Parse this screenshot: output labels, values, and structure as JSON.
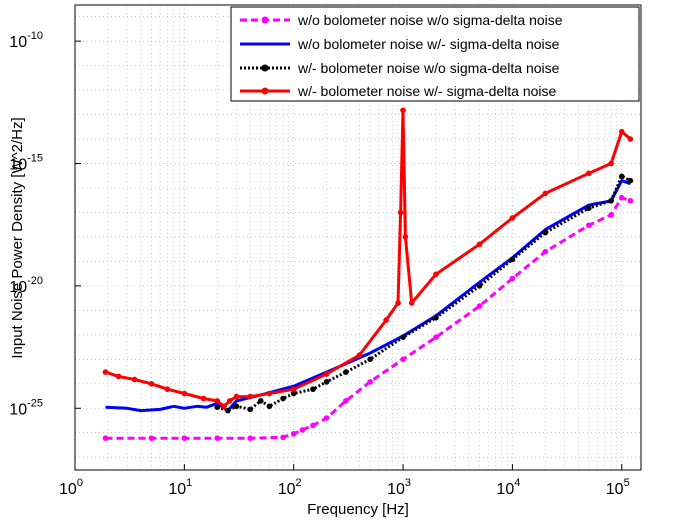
{
  "chart_data": {
    "type": "line",
    "title": "",
    "xlabel": "Frequency [Hz]",
    "ylabel": "Input Noise Power Density [W^2/Hz]",
    "x_scale": "log",
    "y_scale": "log",
    "xlim": [
      1,
      150000
    ],
    "ylim": [
      3e-28,
      3e-09
    ],
    "grid": true,
    "legend_position": "top-right",
    "x_ticks": [
      {
        "base": "10",
        "exp": "0",
        "value": 1
      },
      {
        "base": "10",
        "exp": "1",
        "value": 10
      },
      {
        "base": "10",
        "exp": "2",
        "value": 100
      },
      {
        "base": "10",
        "exp": "3",
        "value": 1000
      },
      {
        "base": "10",
        "exp": "4",
        "value": 10000
      },
      {
        "base": "10",
        "exp": "5",
        "value": 100000
      }
    ],
    "y_ticks": [
      {
        "base": "10",
        "exp": "-25",
        "value": 1e-25
      },
      {
        "base": "10",
        "exp": "-20",
        "value": 1e-20
      },
      {
        "base": "10",
        "exp": "-15",
        "value": 1e-15
      },
      {
        "base": "10",
        "exp": "-10",
        "value": 1e-10
      }
    ],
    "series": [
      {
        "name": "w/o bolometer noise w/o sigma-delta noise",
        "color": "#ff00ff",
        "style": "dashed-marker",
        "x": [
          1.9,
          5,
          10,
          20,
          40,
          80,
          100,
          120,
          150,
          200,
          300,
          500,
          1000,
          2000,
          5000,
          10000,
          20000,
          50000,
          80000,
          100000,
          120000
        ],
        "y": [
          6e-27,
          6e-27,
          6e-27,
          6e-27,
          6e-27,
          6.5e-27,
          9e-27,
          1.3e-26,
          2e-26,
          4e-26,
          2e-25,
          1.2e-24,
          1e-23,
          8e-23,
          1.5e-21,
          2e-20,
          2.5e-19,
          3e-18,
          8e-18,
          4e-17,
          3e-17
        ]
      },
      {
        "name": "w/o bolometer noise w/- sigma-delta noise",
        "color": "#0000ff",
        "style": "solid",
        "x": [
          1.9,
          3,
          4,
          6,
          8,
          10,
          13,
          16,
          20,
          25,
          30,
          50,
          100,
          200,
          500,
          1000,
          2000,
          5000,
          10000,
          20000,
          50000,
          80000,
          100000,
          120000
        ],
        "y": [
          1.1e-25,
          1e-25,
          8e-26,
          9e-26,
          1.2e-25,
          1e-25,
          1.2e-25,
          1.1e-25,
          1.6e-25,
          8e-26,
          2e-25,
          3.5e-25,
          8e-25,
          3e-24,
          1.8e-23,
          9e-23,
          6e-22,
          1.4e-20,
          1.4e-19,
          2e-18,
          2e-17,
          3e-17,
          2e-16,
          1.5e-16
        ]
      },
      {
        "name": "w/- bolometer noise w/o sigma-delta noise",
        "color": "#000000",
        "style": "dotted-marker",
        "x": [
          20,
          25,
          30,
          40,
          50,
          60,
          80,
          100,
          150,
          200,
          300,
          500,
          1000,
          2000,
          5000,
          10000,
          20000,
          50000,
          80000,
          100000,
          120000
        ],
        "y": [
          1.1e-25,
          8e-26,
          1.2e-25,
          9e-26,
          2e-25,
          1.2e-25,
          2.5e-25,
          4e-25,
          6e-25,
          1.2e-24,
          3e-24,
          1e-23,
          8e-23,
          5e-22,
          1e-20,
          1.2e-19,
          1.5e-18,
          1.5e-17,
          3e-17,
          3e-16,
          2e-16
        ]
      },
      {
        "name": "w/- bolometer noise w/- sigma-delta noise",
        "color": "#ff0000",
        "style": "solid-marker",
        "x": [
          1.9,
          2.5,
          3.5,
          5,
          7,
          10,
          15,
          20,
          23,
          26,
          30,
          40,
          60,
          100,
          200,
          400,
          700,
          900,
          950,
          1000,
          1050,
          1200,
          2000,
          5000,
          10000,
          20000,
          50000,
          80000,
          100000,
          120000
        ],
        "y": [
          3e-24,
          2e-24,
          1.5e-24,
          1e-24,
          6e-25,
          4e-25,
          2.5e-25,
          2e-25,
          1.2e-25,
          2e-25,
          3e-25,
          3e-25,
          4e-25,
          6e-25,
          2.5e-24,
          1.5e-23,
          4e-22,
          2e-21,
          1e-17,
          1.5e-13,
          1e-18,
          2e-21,
          3e-20,
          5e-19,
          6e-18,
          6e-17,
          4e-16,
          1e-15,
          2e-14,
          1e-14
        ]
      }
    ]
  }
}
